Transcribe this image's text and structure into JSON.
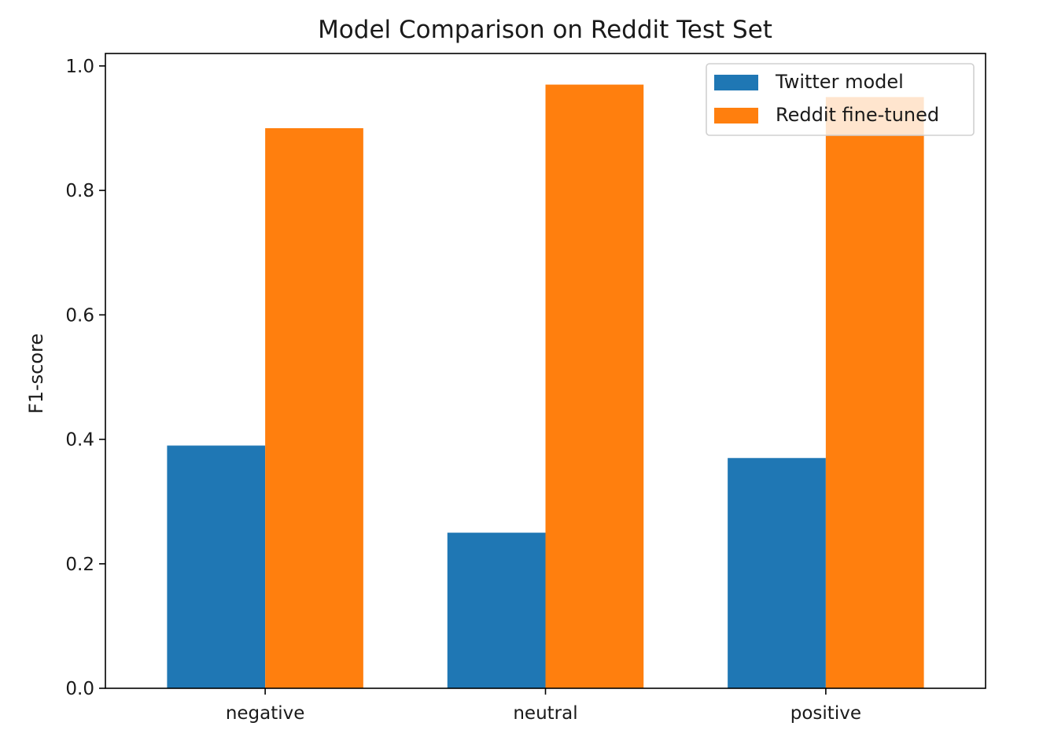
{
  "chart_data": {
    "type": "bar",
    "title": "Model Comparison on Reddit Test Set",
    "xlabel": "",
    "ylabel": "F1-score",
    "categories": [
      "negative",
      "neutral",
      "positive"
    ],
    "ylim": [
      0,
      1.02
    ],
    "yticks": [
      "0.0",
      "0.2",
      "0.4",
      "0.6",
      "0.8",
      "1.0"
    ],
    "grid": false,
    "legend_position": "upper right",
    "series": [
      {
        "name": "Twitter model",
        "color": "#1f77b4",
        "values": [
          0.39,
          0.25,
          0.37
        ]
      },
      {
        "name": "Reddit fine-tuned",
        "color": "#ff7f0e",
        "values": [
          0.9,
          0.97,
          0.95
        ]
      }
    ]
  }
}
